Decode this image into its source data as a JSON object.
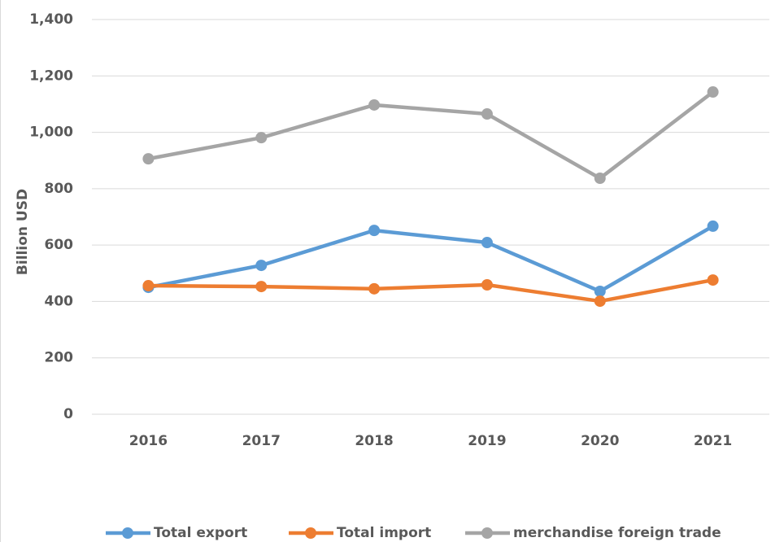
{
  "chart_data": {
    "type": "line",
    "y_label": "Billion USD",
    "categories": [
      "2016",
      "2017",
      "2018",
      "2019",
      "2020",
      "2021"
    ],
    "series": [
      {
        "name": "Total export",
        "color": "#5b9bd5",
        "values": [
          450,
          528,
          652,
          609,
          436,
          667
        ]
      },
      {
        "name": "Total import",
        "color": "#ed7d31",
        "values": [
          456,
          453,
          445,
          459,
          401,
          476
        ]
      },
      {
        "name": "merchandise foreign trade",
        "color": "#a5a5a5",
        "values": [
          906,
          981,
          1097,
          1065,
          837,
          1143
        ]
      }
    ],
    "ylim": [
      0,
      1400
    ],
    "yticks": [
      0,
      200,
      400,
      600,
      800,
      {
        "value": 1000,
        "label": "1,000"
      },
      {
        "value": 1200,
        "label": "1,200"
      },
      {
        "value": 1400,
        "label": "1,400"
      }
    ],
    "grid": true,
    "legend": "bottom"
  }
}
